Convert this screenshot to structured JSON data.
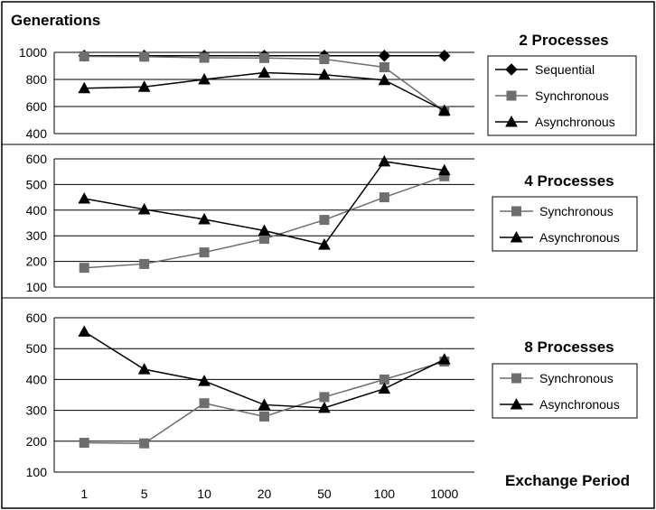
{
  "chart_data": [
    {
      "type": "line",
      "title": "2 Processes",
      "ylabel": "Generations",
      "xlabel": "",
      "categories": [
        "1",
        "5",
        "10",
        "20",
        "50",
        "100",
        "1000"
      ],
      "ylim": [
        400,
        1000
      ],
      "yticks": [
        "400",
        "600",
        "800",
        "1000"
      ],
      "grid": true,
      "legend_position": "right",
      "series": [
        {
          "name": "Sequential",
          "marker": "diamond",
          "values": [
            975,
            975,
            975,
            975,
            975,
            975,
            975
          ]
        },
        {
          "name": "Synchronous",
          "marker": "square",
          "values": [
            970,
            968,
            960,
            958,
            950,
            890,
            565
          ]
        },
        {
          "name": "Asynchronous",
          "marker": "triangle",
          "values": [
            735,
            745,
            800,
            850,
            835,
            795,
            570
          ]
        }
      ]
    },
    {
      "type": "line",
      "title": "4 Processes",
      "ylabel": "",
      "xlabel": "",
      "categories": [
        "1",
        "5",
        "10",
        "20",
        "50",
        "100",
        "1000"
      ],
      "ylim": [
        100,
        600
      ],
      "yticks": [
        "100",
        "200",
        "300",
        "400",
        "500",
        "600"
      ],
      "grid": true,
      "legend_position": "right",
      "series": [
        {
          "name": "Synchronous",
          "marker": "square",
          "values": [
            175,
            190,
            235,
            288,
            362,
            450,
            532
          ]
        },
        {
          "name": "Asynchronous",
          "marker": "triangle",
          "values": [
            445,
            403,
            364,
            320,
            265,
            590,
            555
          ]
        }
      ]
    },
    {
      "type": "line",
      "title": "8 Processes",
      "ylabel": "",
      "xlabel": "Exchange Period",
      "categories": [
        "1",
        "5",
        "10",
        "20",
        "50",
        "100",
        "1000"
      ],
      "ylim": [
        100,
        600
      ],
      "yticks": [
        "100",
        "200",
        "300",
        "400",
        "500",
        "600"
      ],
      "grid": true,
      "legend_position": "right",
      "series": [
        {
          "name": "Synchronous",
          "marker": "square",
          "values": [
            195,
            193,
            323,
            280,
            343,
            400,
            458
          ]
        },
        {
          "name": "Asynchronous",
          "marker": "triangle",
          "values": [
            555,
            433,
            395,
            318,
            308,
            370,
            465
          ]
        }
      ]
    }
  ]
}
